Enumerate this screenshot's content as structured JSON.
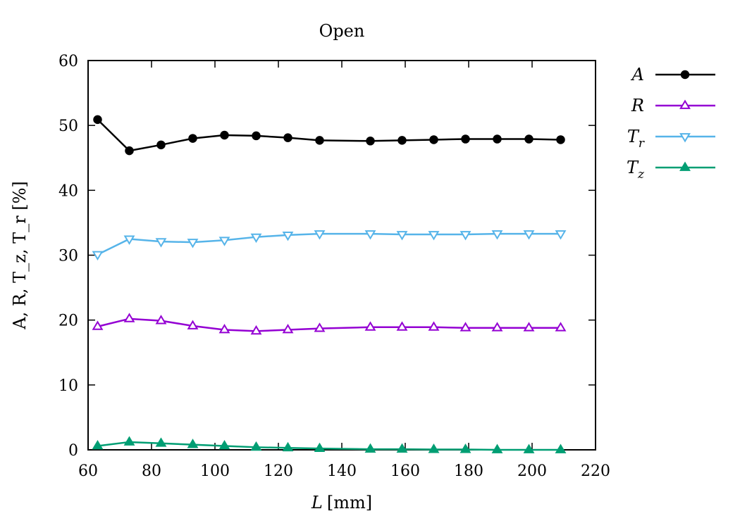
{
  "chart_data": {
    "type": "line",
    "title": "Open",
    "xlabel": {
      "var": "L",
      "unit": "[mm]"
    },
    "ylabel": "A, R, T_z, T_r [%]",
    "xlim": [
      60,
      220
    ],
    "ylim": [
      0,
      60
    ],
    "xticks": [
      "60",
      "80",
      "100",
      "120",
      "140",
      "160",
      "180",
      "200",
      "220"
    ],
    "yticks": [
      "0",
      "10",
      "20",
      "30",
      "40",
      "50",
      "60"
    ],
    "grid": false,
    "legend_position": "right-outside-top",
    "x": [
      63,
      73,
      83,
      93,
      103,
      113,
      123,
      133,
      149,
      159,
      169,
      179,
      189,
      199,
      209
    ],
    "series": [
      {
        "name": "A",
        "symbol": "A",
        "subscript": "",
        "color": "#000000",
        "marker": "circle-filled",
        "values": [
          50.9,
          46.1,
          47.0,
          48.0,
          48.5,
          48.4,
          48.1,
          47.7,
          47.6,
          47.7,
          47.8,
          47.9,
          47.9,
          47.9,
          47.8
        ]
      },
      {
        "name": "R",
        "symbol": "R",
        "subscript": "",
        "color": "#9400d3",
        "marker": "triangle-up-open",
        "values": [
          19.0,
          20.2,
          19.9,
          19.1,
          18.5,
          18.3,
          18.5,
          18.7,
          18.9,
          18.9,
          18.9,
          18.8,
          18.8,
          18.8,
          18.8
        ]
      },
      {
        "name": "T_r",
        "symbol": "T",
        "subscript": "r",
        "color": "#56b4e9",
        "marker": "triangle-down-open",
        "values": [
          30.1,
          32.5,
          32.1,
          32.0,
          32.3,
          32.8,
          33.1,
          33.3,
          33.3,
          33.2,
          33.2,
          33.2,
          33.3,
          33.3,
          33.3
        ]
      },
      {
        "name": "T_z",
        "symbol": "T",
        "subscript": "z",
        "color": "#009e73",
        "marker": "triangle-up-filled",
        "values": [
          0.6,
          1.2,
          1.0,
          0.8,
          0.6,
          0.4,
          0.3,
          0.2,
          0.1,
          0.1,
          0.05,
          0.05,
          0.0,
          0.0,
          0.0
        ]
      }
    ]
  }
}
